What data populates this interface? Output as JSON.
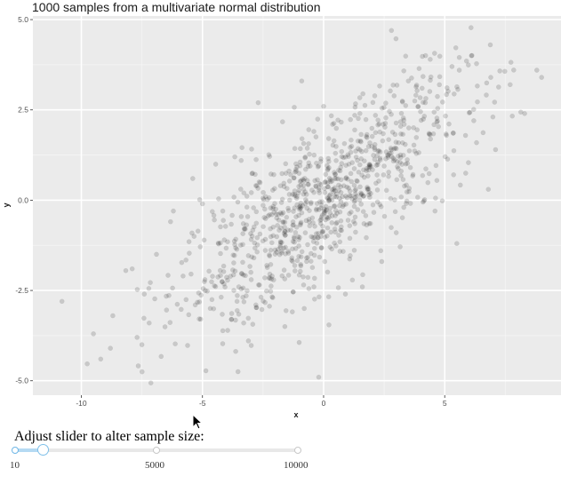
{
  "chart_data": {
    "type": "scatter",
    "title": "1000 samples from a multivariate normal distribution",
    "xlabel": "x",
    "ylabel": "y",
    "xlim": [
      -12.0,
      9.8
    ],
    "ylim": [
      -5.4,
      5.1
    ],
    "x_ticks": [
      -10,
      -5,
      0,
      5
    ],
    "x_tick_labels": [
      "-10",
      "-5",
      "0",
      "5"
    ],
    "y_ticks": [
      -5.0,
      -2.5,
      0.0,
      2.5,
      5.0
    ],
    "y_tick_labels": [
      "-5.0",
      "-2.5",
      "0.0",
      "2.5",
      "5.0"
    ],
    "grid": true,
    "n_points": 1000,
    "point_color": "#000000",
    "point_alpha": 0.15,
    "panel_background": "#ebebeb",
    "points": [
      [
        -10.8,
        -2.8
      ],
      [
        -9.5,
        -3.7
      ],
      [
        -9.2,
        -4.4
      ],
      [
        -8.7,
        -3.2
      ],
      [
        -8.8,
        -4.1
      ],
      [
        -7.7,
        -3.8
      ],
      [
        -7.5,
        -4.0
      ],
      [
        -7.4,
        -2.6
      ],
      [
        -7.2,
        -3.4
      ],
      [
        -7.9,
        -1.9
      ],
      [
        -3.8,
        -3.3
      ],
      [
        -3.3,
        -3.4
      ],
      [
        -1.6,
        -3.5
      ],
      [
        -0.2,
        -4.9
      ],
      [
        -0.8,
        -3.0
      ],
      [
        -2.7,
        2.7
      ],
      [
        -0.9,
        3.3
      ],
      [
        2.8,
        4.7
      ],
      [
        4.4,
        3.9
      ],
      [
        5.3,
        3.7
      ],
      [
        5.6,
        3.6
      ],
      [
        6.9,
        3.4
      ],
      [
        8.8,
        3.6
      ],
      [
        7.7,
        3.2
      ],
      [
        8.3,
        2.4
      ],
      [
        9.0,
        3.4
      ],
      [
        5.5,
        -1.2
      ],
      [
        -4.1,
        -1.1
      ],
      [
        -6.2,
        -0.3
      ],
      [
        -6.9,
        -1.5
      ],
      [
        -5.4,
        0.6
      ],
      [
        -5.0,
        -0.1
      ],
      [
        -3.4,
        1.1
      ],
      [
        0.0,
        2.6
      ],
      [
        1.5,
        2.4
      ],
      [
        3.5,
        3.3
      ],
      [
        4.2,
        2.7
      ],
      [
        6.2,
        2.2
      ],
      [
        7.1,
        1.4
      ],
      [
        6.8,
        0.3
      ],
      [
        4.6,
        -0.3
      ],
      [
        3.0,
        -0.9
      ],
      [
        2.4,
        -1.7
      ],
      [
        1.6,
        -2.4
      ],
      [
        0.9,
        -2.6
      ],
      [
        -0.4,
        -2.4
      ],
      [
        -2.1,
        -2.7
      ],
      [
        -3.5,
        -2.4
      ],
      [
        -4.9,
        -2.2
      ],
      [
        -5.8,
        -2.1
      ]
    ]
  },
  "slider": {
    "label": "Adjust slider to alter sample size:",
    "min": 10,
    "max": 10000,
    "value": 1000,
    "min_label": "10",
    "mid_label": "5000",
    "max_label": "10000"
  },
  "colors": {
    "slider_accent": "#7dbfe9",
    "slider_fill": "#b5daf3"
  },
  "icons": {
    "cursor": "mouse-pointer-icon"
  }
}
